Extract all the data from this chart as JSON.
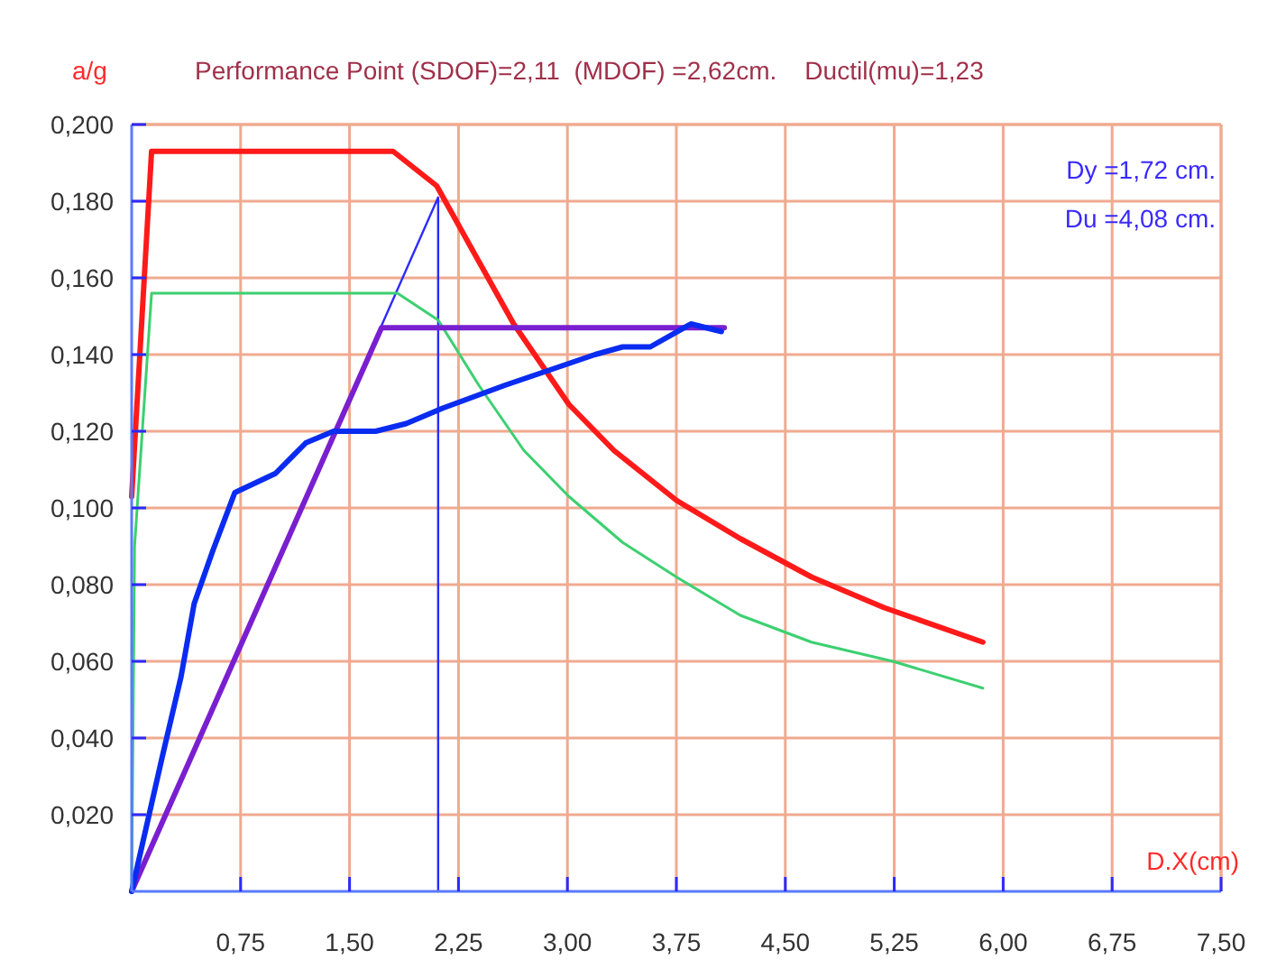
{
  "chart_data": {
    "type": "line",
    "title": "Performance Point (SDOF)=2,11  (MDOF) =2,62cm.    Ductil(mu)=1,23",
    "ylabel": "a/g",
    "xlabel": "D.X(cm)",
    "annotations": [
      "Dy =1,72 cm.",
      "Du =4,08 cm."
    ],
    "xlim": [
      0,
      7.5
    ],
    "ylim": [
      0,
      0.2
    ],
    "xticks": [
      {
        "value": 0.75,
        "label": "0,75"
      },
      {
        "value": 1.5,
        "label": "1,50"
      },
      {
        "value": 2.25,
        "label": "2,25"
      },
      {
        "value": 3,
        "label": "3,00"
      },
      {
        "value": 3.75,
        "label": "3,75"
      },
      {
        "value": 4.5,
        "label": "4,50"
      },
      {
        "value": 5.25,
        "label": "5,25"
      },
      {
        "value": 6,
        "label": "6,00"
      },
      {
        "value": 6.75,
        "label": "6,75"
      },
      {
        "value": 7.5,
        "label": "7,50"
      }
    ],
    "yticks": [
      {
        "value": 0.02,
        "label": "0,020"
      },
      {
        "value": 0.04,
        "label": "0,040"
      },
      {
        "value": 0.06,
        "label": "0,060"
      },
      {
        "value": 0.08,
        "label": "0,080"
      },
      {
        "value": 0.1,
        "label": "0,100"
      },
      {
        "value": 0.12,
        "label": "0,120"
      },
      {
        "value": 0.14,
        "label": "0,140"
      },
      {
        "value": 0.16,
        "label": "0,160"
      },
      {
        "value": 0.18,
        "label": "0,180"
      },
      {
        "value": 0.2,
        "label": "0,200"
      }
    ],
    "grid": true,
    "marker": "none",
    "line_style": "solid",
    "series": [
      {
        "color": "#2b2bff",
        "x": [
          0,
          2.11,
          2.11
        ],
        "values": [
          0,
          0.181,
          0
        ]
      },
      {
        "color": "#3cd070",
        "x": [
          0,
          0.02,
          0.137,
          1.83,
          2.11,
          2.39,
          2.7,
          3.01,
          3.38,
          3.75,
          4.19,
          4.68,
          5.24,
          5.86
        ],
        "values": [
          0,
          0.09,
          0.156,
          0.156,
          0.149,
          0.132,
          0.115,
          0.103,
          0.091,
          0.082,
          0.072,
          0.065,
          0.06,
          0.053
        ]
      },
      {
        "color": "#ff1a1a",
        "x": [
          0,
          0.137,
          1.8,
          2.1,
          2.35,
          2.63,
          3.01,
          3.32,
          3.75,
          4.19,
          4.68,
          5.18,
          5.86
        ],
        "values": [
          0.103,
          0.193,
          0.193,
          0.184,
          0.167,
          0.148,
          0.127,
          0.115,
          0.102,
          0.092,
          0.082,
          0.074,
          0.065
        ]
      },
      {
        "color": "#7a1fd0",
        "x": [
          0,
          1.72,
          4.08
        ],
        "values": [
          0,
          0.147,
          0.147
        ]
      },
      {
        "color": "#0a2cf0",
        "x": [
          0,
          0.21,
          0.34,
          0.43,
          0.56,
          0.71,
          0.99,
          1.2,
          1.39,
          1.68,
          1.89,
          2.14,
          2.57,
          3.19,
          3.38,
          3.57,
          3.85,
          4.06
        ],
        "values": [
          0,
          0.035,
          0.056,
          0.075,
          0.089,
          0.104,
          0.109,
          0.117,
          0.12,
          0.12,
          0.122,
          0.126,
          0.132,
          0.14,
          0.142,
          0.142,
          0.148,
          0.146
        ]
      }
    ]
  }
}
